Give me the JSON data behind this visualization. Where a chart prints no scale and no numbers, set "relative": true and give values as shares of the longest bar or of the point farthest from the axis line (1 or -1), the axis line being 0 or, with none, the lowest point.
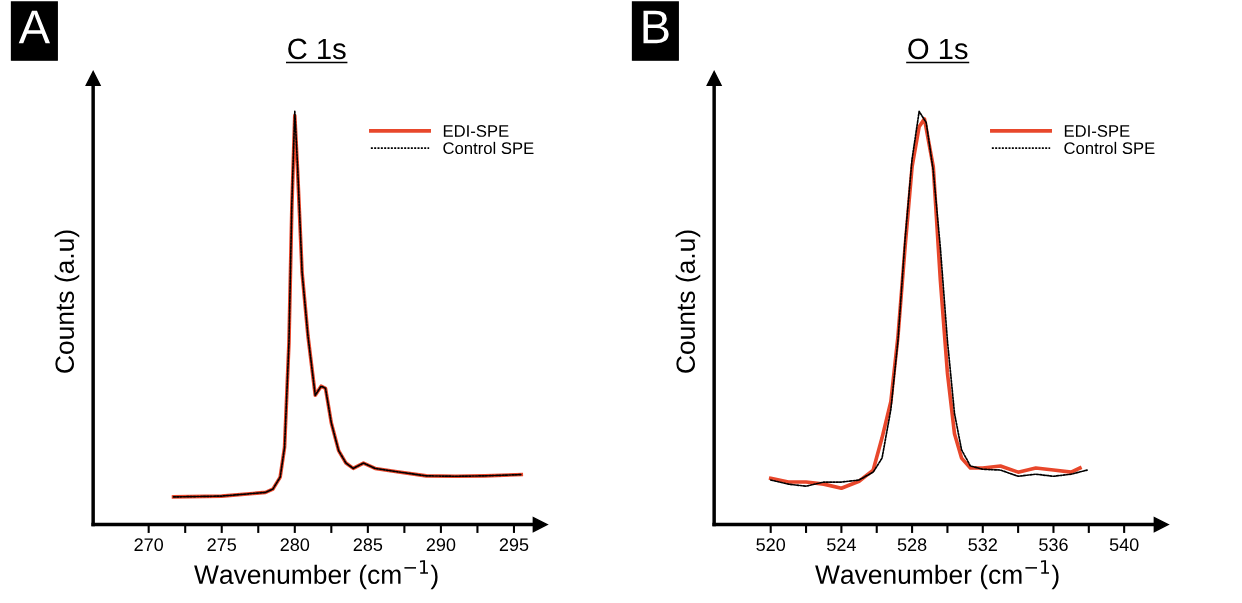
{
  "chart_data": [
    {
      "type": "line",
      "title": "C 1s",
      "xlabel": "Wavenumber (cm$^{−1}$)",
      "ylabel": "Counts (a.u)",
      "relative": true,
      "legend": "top right",
      "marker": "none",
      "annotations": [
        "A"
      ],
      "xlim": [
        266.2,
        296.8
      ],
      "xticks": [
        270,
        {
          "value": 272.5,
          "label": null
        },
        275,
        {
          "value": 277.5,
          "label": null
        },
        280,
        {
          "value": 282.5,
          "label": null
        },
        285,
        {
          "value": 287.5,
          "label": null
        },
        290,
        {
          "value": 292.5,
          "label": null
        },
        295
      ],
      "series": [
        {
          "name": "EDI-SPE",
          "color": "#e8472b",
          "line_style": "solid",
          "x": [
            271.7,
            275,
            278,
            278.5,
            279,
            279.3,
            279.6,
            279.8,
            280,
            280.2,
            280.5,
            280.9,
            281.4,
            281.8,
            282.1,
            282.5,
            283,
            283.5,
            284,
            284.7,
            285.5,
            287,
            289,
            291,
            293,
            295.5
          ],
          "values": [
            0.067,
            0.069,
            0.078,
            0.086,
            0.115,
            0.187,
            0.44,
            0.77,
            0.99,
            0.85,
            0.61,
            0.457,
            0.313,
            0.335,
            0.33,
            0.246,
            0.179,
            0.149,
            0.136,
            0.149,
            0.136,
            0.128,
            0.118,
            0.117,
            0.118,
            0.121
          ]
        },
        {
          "name": "Control SPE",
          "color": "#000000",
          "line_style": "dotted",
          "x": [
            271.7,
            275,
            278,
            278.5,
            279,
            279.3,
            279.6,
            279.8,
            280,
            280.2,
            280.5,
            280.9,
            281.4,
            281.8,
            282.1,
            282.5,
            283,
            283.5,
            284,
            284.7,
            285.5,
            287,
            289,
            291,
            293,
            295.5
          ],
          "values": [
            0.067,
            0.069,
            0.078,
            0.086,
            0.115,
            0.187,
            0.44,
            0.78,
            1.0,
            0.86,
            0.61,
            0.457,
            0.313,
            0.335,
            0.33,
            0.246,
            0.179,
            0.149,
            0.136,
            0.149,
            0.136,
            0.128,
            0.118,
            0.117,
            0.118,
            0.121
          ]
        }
      ]
    },
    {
      "type": "line",
      "title": "O 1s",
      "xlabel": "Wavenumber (cm$^{−1}$)",
      "ylabel": "Counts (a.u)",
      "relative": true,
      "legend": "top right",
      "marker": "none",
      "annotations": [
        "B"
      ],
      "xlim": [
        516.8,
        542.1
      ],
      "xticks": [
        520,
        {
          "value": 522,
          "label": null
        },
        524,
        {
          "value": 526,
          "label": null
        },
        528,
        {
          "value": 530,
          "label": null
        },
        532,
        {
          "value": 534,
          "label": null
        },
        536,
        {
          "value": 538,
          "label": null
        },
        540
      ],
      "series": [
        {
          "name": "EDI-SPE",
          "color": "#e8472b",
          "line_style": "solid",
          "x": [
            520,
            521,
            522,
            523,
            524,
            525,
            525.8,
            526.3,
            526.8,
            527.2,
            527.6,
            528,
            528.4,
            528.7,
            529.2,
            529.6,
            530,
            530.4,
            530.8,
            531.3,
            532,
            533,
            534,
            535,
            536,
            537,
            537.5
          ],
          "values": [
            0.112,
            0.103,
            0.103,
            0.098,
            0.088,
            0.105,
            0.132,
            0.21,
            0.298,
            0.455,
            0.67,
            0.866,
            0.963,
            0.982,
            0.866,
            0.591,
            0.367,
            0.22,
            0.161,
            0.137,
            0.137,
            0.142,
            0.127,
            0.137,
            0.132,
            0.127,
            0.137
          ]
        },
        {
          "name": "Control SPE",
          "color": "#000000",
          "line_style": "dotted",
          "x": [
            520,
            521,
            522,
            523,
            524,
            525,
            525.8,
            526.3,
            526.8,
            527.2,
            527.6,
            528,
            528.4,
            528.8,
            529.2,
            529.6,
            530,
            530.4,
            530.8,
            531.3,
            532,
            533,
            534,
            535,
            536,
            537,
            537.9
          ],
          "values": [
            0.108,
            0.098,
            0.093,
            0.103,
            0.103,
            0.108,
            0.127,
            0.161,
            0.279,
            0.445,
            0.689,
            0.885,
            1.0,
            0.973,
            0.856,
            0.67,
            0.445,
            0.269,
            0.181,
            0.142,
            0.134,
            0.132,
            0.117,
            0.122,
            0.117,
            0.122,
            0.132
          ]
        }
      ]
    }
  ]
}
